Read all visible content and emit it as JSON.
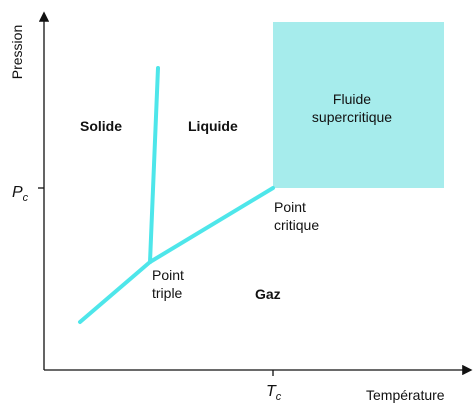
{
  "axes": {
    "y_label": "Pression",
    "x_label": "Température",
    "pc": {
      "symbol": "P",
      "subscript": "c"
    },
    "tc": {
      "symbol": "T",
      "subscript": "c"
    }
  },
  "regions": {
    "solid": "Solide",
    "liquid": "Liquide",
    "gas": "Gaz",
    "supercritical": [
      "Fluide",
      "supercritique"
    ]
  },
  "points": {
    "critical": [
      "Point",
      "critique"
    ],
    "triple": [
      "Point",
      "triple"
    ]
  }
}
